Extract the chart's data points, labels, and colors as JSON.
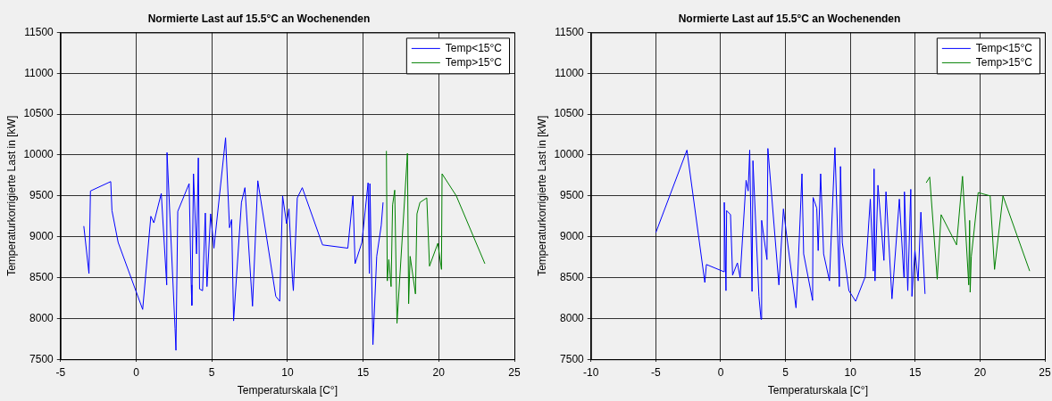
{
  "chart_data": [
    {
      "type": "line",
      "title": "Normierte Last auf 15.5°C an Wochenenden",
      "xlabel": "Temperaturskala [C°]",
      "ylabel": "Temperaturkorrigierte Last in [kW]",
      "xlim": [
        -5,
        25
      ],
      "xticks": [
        -5,
        0,
        5,
        10,
        15,
        20,
        25
      ],
      "ylim": [
        7500,
        11500
      ],
      "yticks": [
        7500,
        8000,
        8500,
        9000,
        9500,
        10000,
        10500,
        11000,
        11500
      ],
      "grid": true,
      "legend": "top right",
      "marker": "none",
      "line_style": "solid",
      "series": [
        {
          "name": "Temp<15°C",
          "color": "#0000ff",
          "x": [
            -3.46,
            -3.12,
            -3.02,
            -1.68,
            -1.6,
            -1.19,
            0.43,
            0.97,
            1.17,
            1.66,
            2.02,
            2.04,
            2.57,
            2.63,
            2.75,
            3.5,
            3.64,
            3.68,
            3.79,
            3.99,
            4.11,
            4.19,
            4.39,
            4.57,
            4.68,
            4.92,
            5.14,
            5.91,
            6.17,
            6.31,
            6.44,
            6.96,
            7.19,
            7.69,
            8.04,
            9.23,
            9.49,
            9.68,
            9.94,
            10.1,
            10.33,
            10.39,
            10.65,
            10.98,
            12.32,
            13.99,
            14.33,
            14.47,
            14.92,
            15.33,
            15.41,
            15.45,
            15.65,
            15.9,
            16.2,
            16.32
          ],
          "values": [
            9130,
            8550,
            9560,
            9675,
            9320,
            8930,
            8110,
            9250,
            9170,
            9530,
            8410,
            10030,
            7880,
            7610,
            9310,
            9650,
            8410,
            8160,
            9770,
            8790,
            9965,
            8360,
            8340,
            9290,
            8390,
            9280,
            8860,
            10210,
            9110,
            9210,
            7970,
            9420,
            9600,
            8150,
            9685,
            8270,
            8210,
            9500,
            9160,
            9340,
            8480,
            8340,
            9475,
            9600,
            8900,
            8860,
            9500,
            8670,
            8930,
            9660,
            8550,
            9650,
            7680,
            8760,
            9140,
            9420
          ]
        },
        {
          "name": "Temp>15°C",
          "color": "#008000",
          "x": [
            16.54,
            16.6,
            16.7,
            16.85,
            16.95,
            17.09,
            17.24,
            17.93,
            18.01,
            18.11,
            18.46,
            18.56,
            18.76,
            19.21,
            19.39,
            19.94,
            20.18,
            20.22,
            21.16,
            23.05
          ],
          "values": [
            10050,
            8460,
            8720,
            8390,
            9390,
            9570,
            7940,
            10020,
            8180,
            8760,
            8300,
            9280,
            9420,
            9475,
            8640,
            8920,
            8600,
            9770,
            9500,
            8670
          ]
        }
      ]
    },
    {
      "type": "line",
      "title": "Normierte Last auf 15.5°C an Wochenenden",
      "xlabel": "Temperaturskala [C°]",
      "ylabel": "Temperaturkorrigierte Last in [kW]",
      "xlim": [
        -10,
        25
      ],
      "xticks": [
        -10,
        -5,
        0,
        5,
        10,
        15,
        20,
        25
      ],
      "ylim": [
        7500,
        11500
      ],
      "yticks": [
        7500,
        8000,
        8500,
        9000,
        9500,
        10000,
        10500,
        11000,
        11500
      ],
      "grid": true,
      "legend": "top right",
      "marker": "none",
      "line_style": "solid",
      "series": [
        {
          "name": "Temp<15°C",
          "color": "#0000ff",
          "x": [
            -5.0,
            -2.6,
            -1.22,
            -1.1,
            0.28,
            0.28,
            0.41,
            0.46,
            0.76,
            0.92,
            1.29,
            1.5,
            1.96,
            2.12,
            2.24,
            2.42,
            2.49,
            2.95,
            3.11,
            3.16,
            3.57,
            3.64,
            4.49,
            4.84,
            5.07,
            5.81,
            5.94,
            6.27,
            6.4,
            7.09,
            7.13,
            7.41,
            7.52,
            7.71,
            7.94,
            8.39,
            8.81,
            9.15,
            9.24,
            9.38,
            9.89,
            10.41,
            11.15,
            11.54,
            11.77,
            11.83,
            11.9,
            12.13,
            12.59,
            12.75,
            13.21,
            13.78,
            14.13,
            14.17,
            14.43,
            14.66,
            14.75,
            14.98,
            15.23,
            15.44,
            15.76
          ],
          "values": [
            9050,
            10060,
            8440,
            8660,
            8570,
            9420,
            8340,
            9320,
            9270,
            8530,
            8680,
            8500,
            9690,
            9560,
            10060,
            8330,
            9930,
            8270,
            7990,
            9200,
            8720,
            10080,
            8410,
            9340,
            9040,
            8130,
            8510,
            9770,
            8790,
            8220,
            9480,
            9350,
            8830,
            9770,
            8790,
            8460,
            10090,
            8390,
            9860,
            8930,
            8340,
            8210,
            8510,
            9460,
            8580,
            9830,
            8460,
            9630,
            8710,
            9550,
            8240,
            9460,
            8500,
            9550,
            8340,
            9580,
            8270,
            8830,
            8460,
            9300,
            8300
          ]
        },
        {
          "name": "Temp>15°C",
          "color": "#008000",
          "x": [
            15.85,
            16.12,
            16.7,
            17.0,
            18.19,
            18.65,
            19.13,
            19.2,
            19.24,
            19.33,
            19.86,
            20.78,
            21.12,
            21.77,
            23.83
          ],
          "values": [
            9660,
            9730,
            8480,
            9270,
            8900,
            9740,
            8410,
            9200,
            8320,
            8760,
            9540,
            9500,
            8600,
            9500,
            8580
          ]
        }
      ]
    }
  ]
}
